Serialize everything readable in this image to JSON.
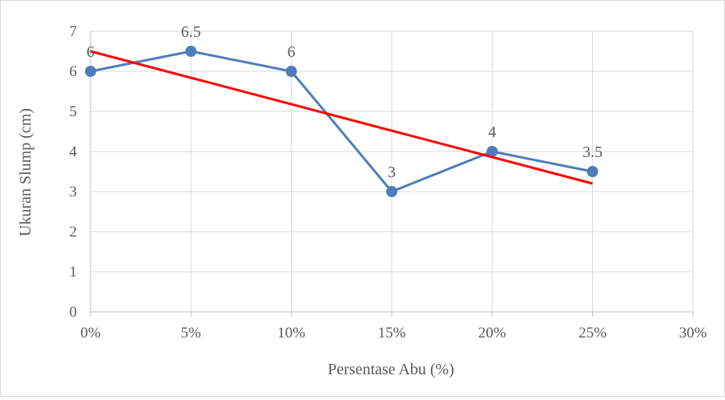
{
  "chart_data": {
    "type": "line",
    "title": "",
    "xlabel": "Persentase Abu (%)",
    "ylabel": "Ukuran Slump (cm)",
    "x_ticks": [
      "0%",
      "5%",
      "10%",
      "15%",
      "20%",
      "25%",
      "30%"
    ],
    "y_ticks": [
      "0",
      "1",
      "2",
      "3",
      "4",
      "5",
      "6",
      "7"
    ],
    "xlim": [
      0,
      30
    ],
    "ylim": [
      0,
      7
    ],
    "grid": true,
    "series": [
      {
        "x": [
          0,
          5,
          10,
          15,
          20,
          25
        ],
        "values": [
          6,
          6.5,
          6,
          3,
          4,
          3.5
        ],
        "data_labels": [
          "6",
          "6.5",
          "6",
          "3",
          "4",
          "3.5"
        ],
        "color": "#4f7dbb",
        "markers": true
      },
      {
        "kind": "linear trendline",
        "x": [
          0,
          25
        ],
        "values": [
          6.5,
          3.2
        ],
        "color": "#ff0000",
        "markers": false
      }
    ]
  }
}
